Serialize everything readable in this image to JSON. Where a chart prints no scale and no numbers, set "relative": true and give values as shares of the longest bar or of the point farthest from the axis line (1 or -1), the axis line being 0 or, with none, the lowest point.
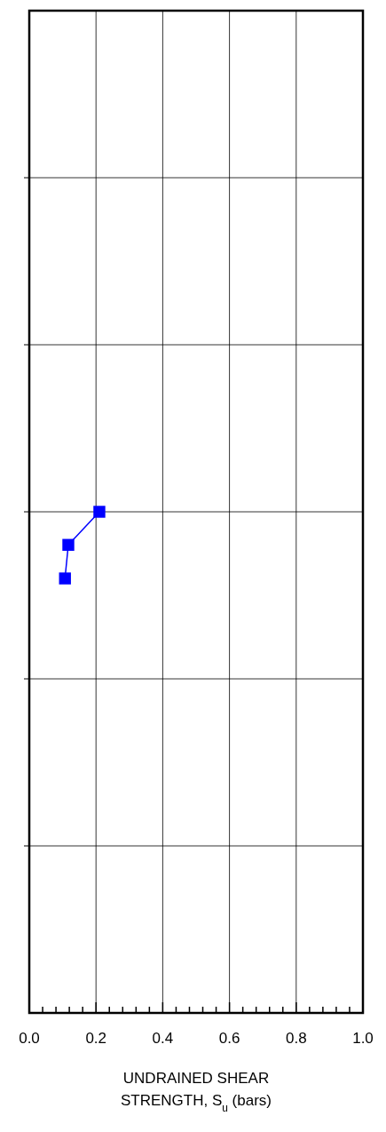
{
  "chart_data": {
    "type": "line",
    "xlabel": "UNDRAINED SHEAR\nSTRENGTH, S$_{u}$ (bars)",
    "relative": true,
    "xlim": [
      0,
      1
    ],
    "xticks": [
      {
        "value": 0,
        "label": "0.0"
      },
      {
        "value": 0.04,
        "label": null
      },
      {
        "value": 0.08,
        "label": null
      },
      {
        "value": 0.12,
        "label": null
      },
      {
        "value": 0.16,
        "label": null
      },
      0.2,
      {
        "value": 0.24,
        "label": null
      },
      {
        "value": 0.28,
        "label": null
      },
      {
        "value": 0.32,
        "label": null
      },
      {
        "value": 0.36,
        "label": null
      },
      0.4,
      {
        "value": 0.44,
        "label": null
      },
      {
        "value": 0.48,
        "label": null
      },
      {
        "value": 0.52,
        "label": null
      },
      {
        "value": 0.56,
        "label": null
      },
      0.6,
      {
        "value": 0.64,
        "label": null
      },
      {
        "value": 0.68,
        "label": null
      },
      {
        "value": 0.72,
        "label": null
      },
      {
        "value": 0.76,
        "label": null
      },
      0.8,
      {
        "value": 0.84,
        "label": null
      },
      {
        "value": 0.88,
        "label": null
      },
      {
        "value": 0.92,
        "label": null
      },
      {
        "value": 0.96,
        "label": null
      },
      {
        "value": 1,
        "label": "1.0"
      }
    ],
    "series": [
      {
        "color": "#0000ff",
        "x": [
          0.21,
          0.117,
          0.107
        ],
        "values": [
          1,
          0.934,
          0.867
        ]
      }
    ],
    "marker": "square",
    "grid": true,
    "tick_labels": "x"
  }
}
